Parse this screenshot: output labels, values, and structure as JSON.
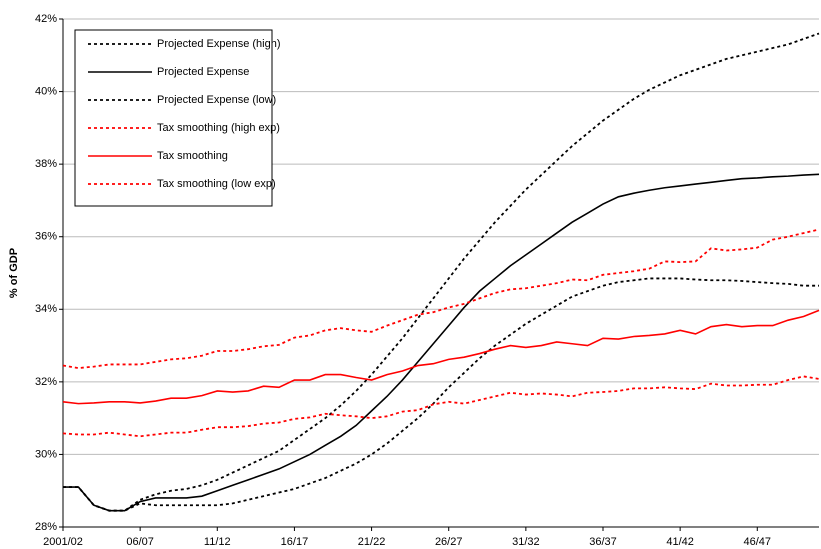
{
  "chart_data": {
    "type": "line",
    "y_label": "% of GDP",
    "categories": [
      "2001/02",
      null,
      null,
      null,
      null,
      "06/07",
      null,
      null,
      null,
      null,
      "11/12",
      null,
      null,
      null,
      null,
      "16/17",
      null,
      null,
      null,
      null,
      "21/22",
      null,
      null,
      null,
      null,
      "26/27",
      null,
      null,
      null,
      null,
      "31/32",
      null,
      null,
      null,
      null,
      "36/37",
      null,
      null,
      null,
      null,
      "41/42",
      null,
      null,
      null,
      null,
      "46/47",
      null,
      null,
      null,
      null
    ],
    "ylim": [
      28,
      42
    ],
    "yticks": [
      {
        "value": 28,
        "label": "28%"
      },
      {
        "value": 30,
        "label": "30%"
      },
      {
        "value": 32,
        "label": "32%"
      },
      {
        "value": 34,
        "label": "34%"
      },
      {
        "value": 36,
        "label": "36%"
      },
      {
        "value": 38,
        "label": "38%"
      },
      {
        "value": 40,
        "label": "40%"
      },
      {
        "value": 42,
        "label": "42%"
      }
    ],
    "grid": true,
    "legend_position": "upper-left",
    "series": [
      {
        "name": "Projected Expense (high)",
        "color": "#000000",
        "dashed": true,
        "values": [
          29.1,
          29.1,
          28.6,
          28.45,
          28.45,
          28.75,
          28.9,
          29.0,
          29.05,
          29.15,
          29.3,
          29.5,
          29.7,
          29.9,
          30.1,
          30.4,
          30.7,
          31.0,
          31.35,
          31.75,
          32.2,
          32.7,
          33.2,
          33.75,
          34.3,
          34.85,
          35.4,
          35.9,
          36.4,
          36.85,
          37.3,
          37.7,
          38.1,
          38.5,
          38.85,
          39.2,
          39.5,
          39.8,
          40.05,
          40.25,
          40.45,
          40.6,
          40.75,
          40.9,
          41.0,
          41.1,
          41.2,
          41.3,
          41.45,
          41.6
        ]
      },
      {
        "name": "Projected Expense",
        "color": "#000000",
        "dashed": false,
        "values": [
          29.1,
          29.1,
          28.6,
          28.45,
          28.45,
          28.7,
          28.8,
          28.8,
          28.8,
          28.85,
          29.0,
          29.15,
          29.3,
          29.45,
          29.6,
          29.8,
          30.0,
          30.25,
          30.5,
          30.8,
          31.2,
          31.6,
          32.05,
          32.55,
          33.05,
          33.55,
          34.05,
          34.5,
          34.85,
          35.2,
          35.5,
          35.8,
          36.1,
          36.4,
          36.65,
          36.9,
          37.1,
          37.2,
          37.28,
          37.35,
          37.4,
          37.45,
          37.5,
          37.55,
          37.6,
          37.62,
          37.65,
          37.67,
          37.7,
          37.72
        ]
      },
      {
        "name": "Projected Expense (low)",
        "color": "#000000",
        "dashed": true,
        "values": [
          29.1,
          29.1,
          28.6,
          28.45,
          28.45,
          28.65,
          28.6,
          28.6,
          28.6,
          28.6,
          28.6,
          28.65,
          28.75,
          28.85,
          28.95,
          29.05,
          29.2,
          29.35,
          29.55,
          29.75,
          30.0,
          30.3,
          30.65,
          31.0,
          31.4,
          31.85,
          32.25,
          32.65,
          33.0,
          33.3,
          33.6,
          33.85,
          34.1,
          34.35,
          34.5,
          34.65,
          34.75,
          34.8,
          34.85,
          34.85,
          34.85,
          34.82,
          34.8,
          34.8,
          34.78,
          34.75,
          34.72,
          34.7,
          34.65,
          34.65
        ]
      },
      {
        "name": "Tax smoothing (high exp)",
        "color": "#ff0000",
        "dashed": true,
        "values": [
          32.45,
          32.38,
          32.42,
          32.48,
          32.48,
          32.48,
          32.55,
          32.62,
          32.65,
          32.72,
          32.85,
          32.85,
          32.9,
          32.98,
          33.02,
          33.22,
          33.28,
          33.42,
          33.48,
          33.42,
          33.38,
          33.55,
          33.7,
          33.85,
          33.92,
          34.05,
          34.15,
          34.3,
          34.45,
          34.55,
          34.58,
          34.65,
          34.72,
          34.82,
          34.8,
          34.95,
          35.0,
          35.05,
          35.12,
          35.32,
          35.3,
          35.32,
          35.68,
          35.62,
          35.65,
          35.7,
          35.92,
          36.0,
          36.1,
          36.2
        ]
      },
      {
        "name": "Tax smoothing",
        "color": "#ff0000",
        "dashed": false,
        "values": [
          31.45,
          31.4,
          31.42,
          31.45,
          31.45,
          31.42,
          31.47,
          31.55,
          31.55,
          31.62,
          31.75,
          31.72,
          31.75,
          31.88,
          31.85,
          32.05,
          32.05,
          32.2,
          32.2,
          32.12,
          32.05,
          32.2,
          32.3,
          32.45,
          32.5,
          32.62,
          32.68,
          32.78,
          32.9,
          33.0,
          32.95,
          33.0,
          33.1,
          33.05,
          33.0,
          33.2,
          33.18,
          33.25,
          33.28,
          33.32,
          33.42,
          33.32,
          33.52,
          33.58,
          33.52,
          33.55,
          33.55,
          33.7,
          33.8,
          33.97
        ]
      },
      {
        "name": "Tax smoothing (low exp)",
        "color": "#ff0000",
        "dashed": true,
        "values": [
          30.58,
          30.55,
          30.55,
          30.6,
          30.55,
          30.5,
          30.55,
          30.6,
          30.6,
          30.68,
          30.75,
          30.75,
          30.78,
          30.85,
          30.88,
          30.98,
          31.02,
          31.12,
          31.08,
          31.05,
          31.0,
          31.05,
          31.18,
          31.22,
          31.38,
          31.45,
          31.4,
          31.5,
          31.6,
          31.7,
          31.65,
          31.68,
          31.65,
          31.6,
          31.7,
          31.72,
          31.75,
          31.82,
          31.82,
          31.85,
          31.82,
          31.8,
          31.95,
          31.9,
          31.9,
          31.92,
          31.92,
          32.05,
          32.15,
          32.08
        ]
      }
    ]
  }
}
